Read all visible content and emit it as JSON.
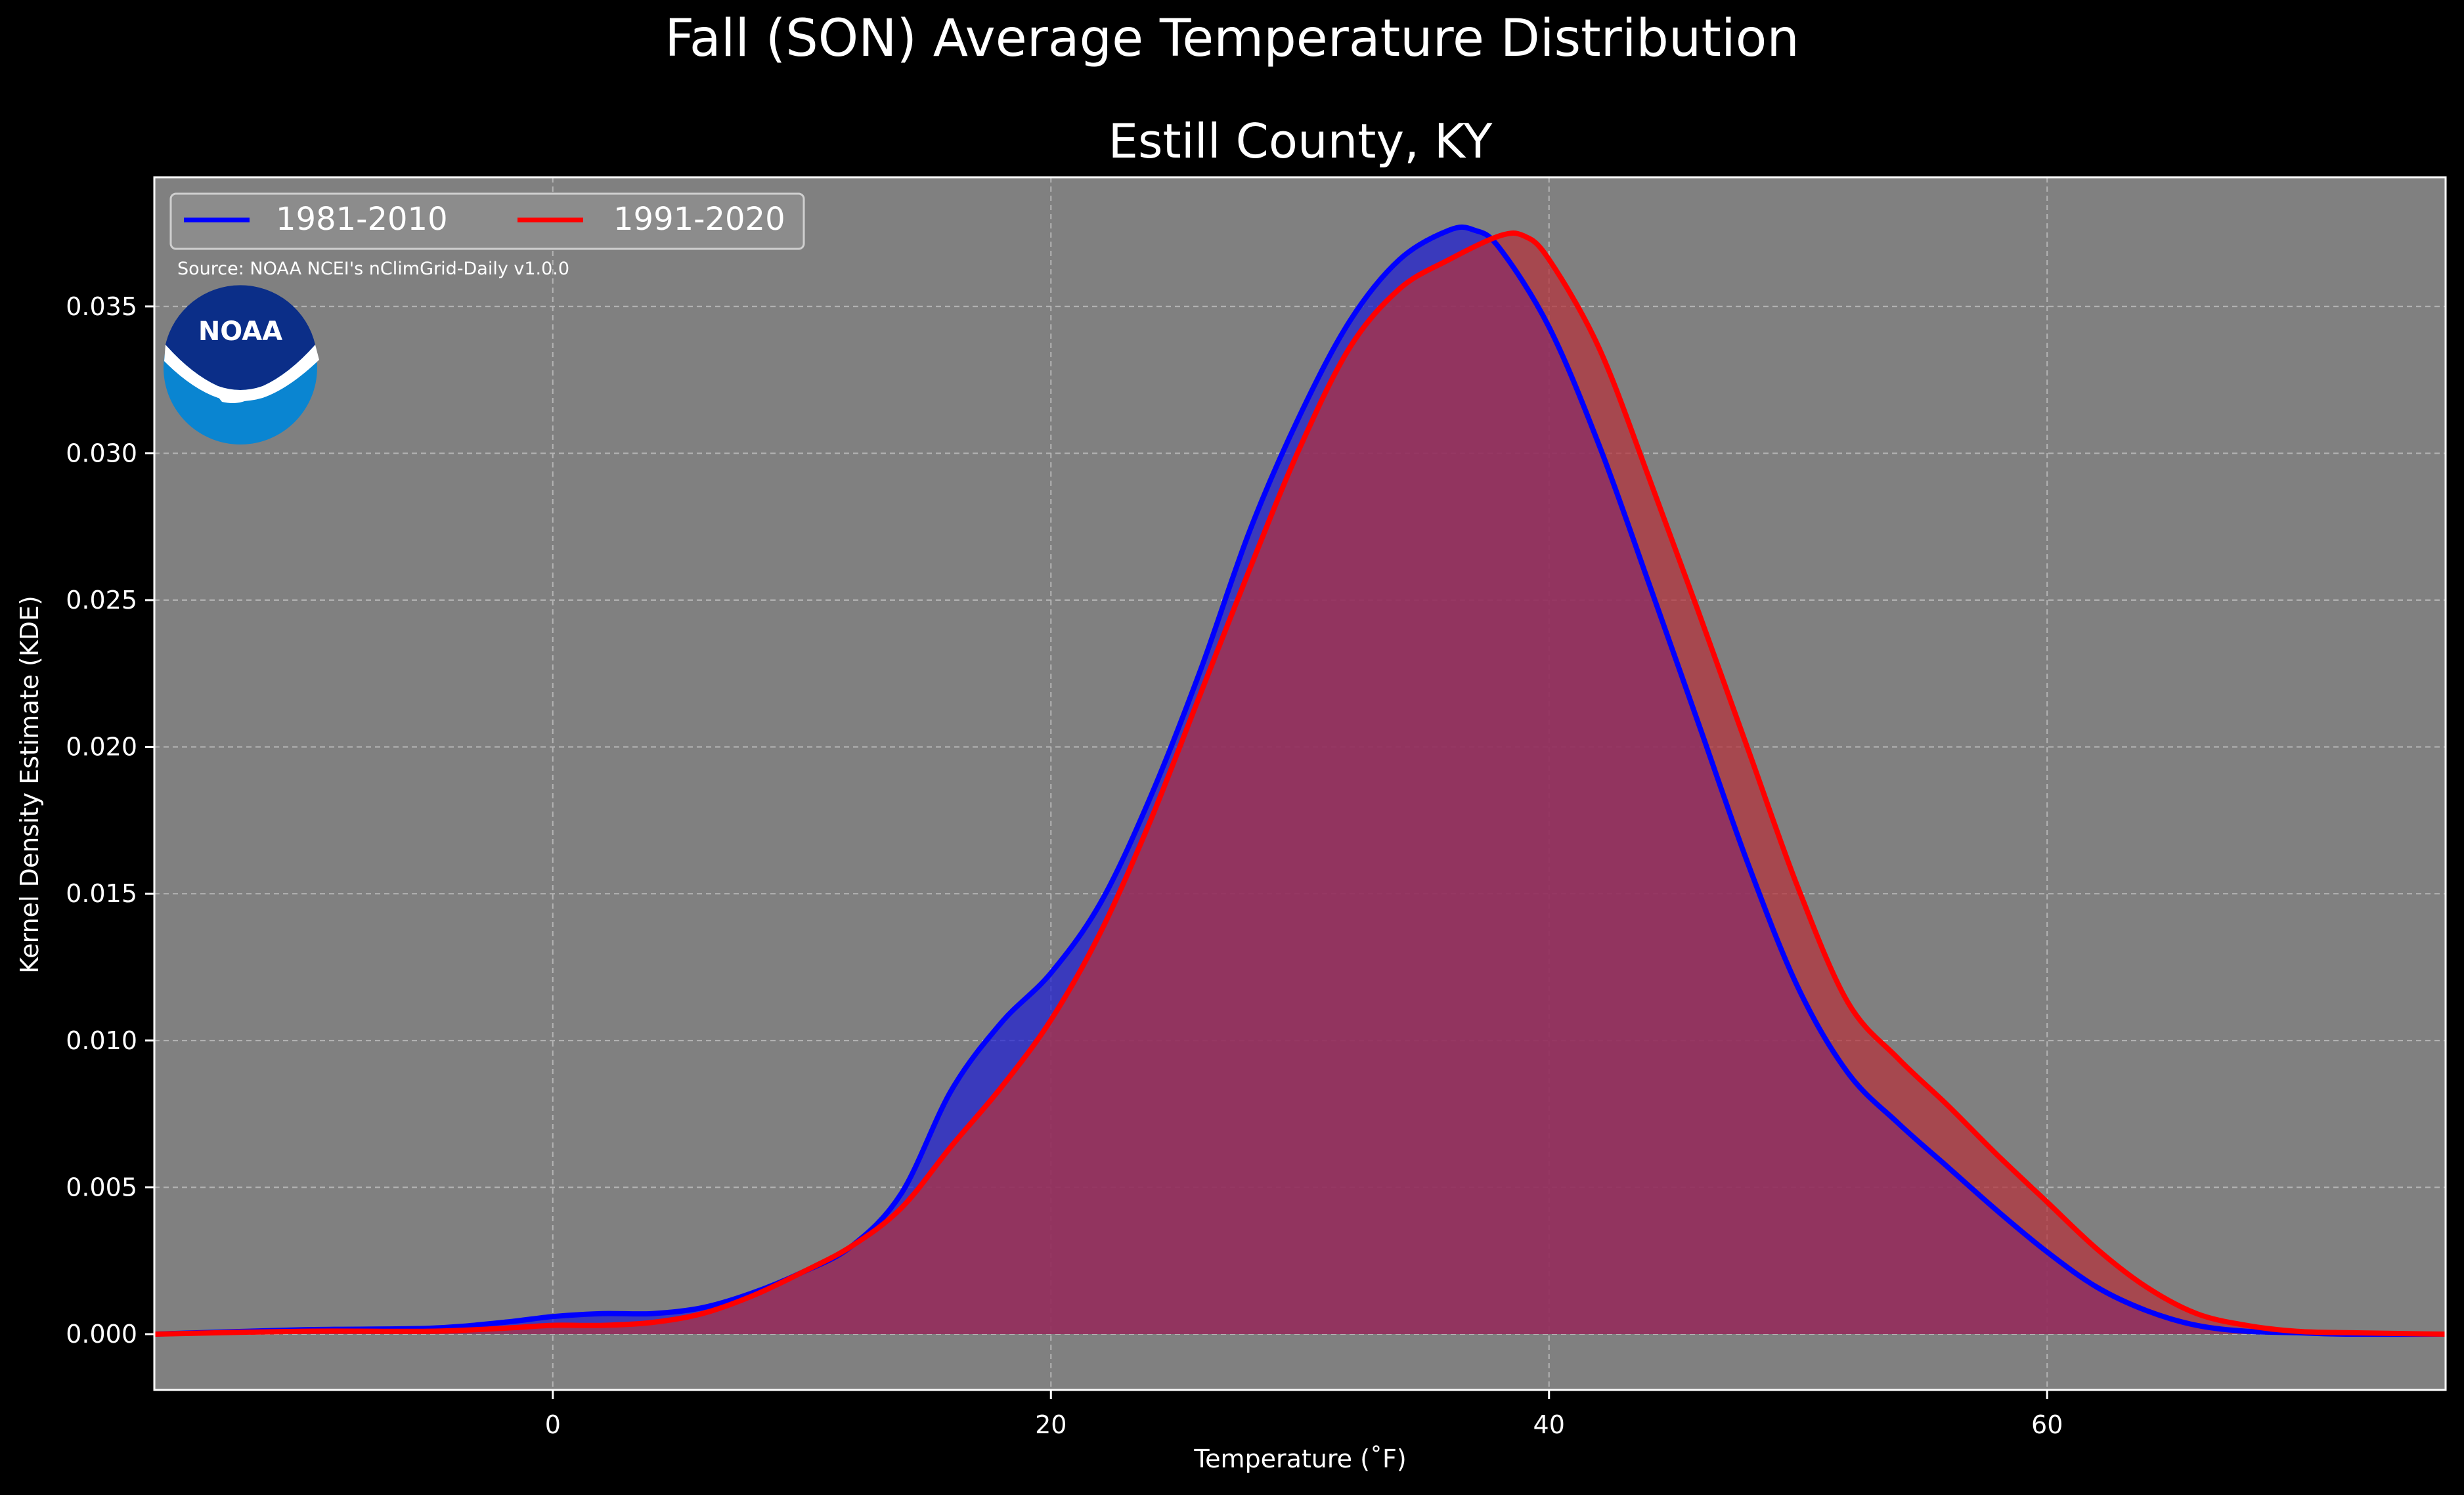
{
  "chart_data": {
    "type": "area",
    "title": "Fall (SON) Average Temperature Distribution",
    "subtitle": "Estill County, KY",
    "xlabel": "Temperature (˚F)",
    "ylabel": "Kernel Density Estimate (KDE)",
    "source": "Source: NOAA NCEI's nClimGrid-Daily v1.0.0",
    "logo_text": "NOAA",
    "xlim": [
      -16,
      76
    ],
    "ylim": [
      -0.0019,
      0.0394
    ],
    "xticks": [
      0,
      20,
      40,
      60
    ],
    "xtick_labels": [
      "0",
      "20",
      "40",
      "60"
    ],
    "yticks": [
      0.0,
      0.005,
      0.01,
      0.015,
      0.02,
      0.025,
      0.03,
      0.035
    ],
    "ytick_labels": [
      "0.000",
      "0.005",
      "0.010",
      "0.015",
      "0.020",
      "0.025",
      "0.030",
      "0.035"
    ],
    "grid": true,
    "legend_position": "top-left",
    "series": [
      {
        "name": "1981-2010",
        "color": "#0000ff",
        "fill": "#1e1ed2",
        "x": [
          -16,
          -10,
          -5,
          -2,
          0,
          2,
          4,
          6,
          8,
          10,
          12,
          14,
          16,
          18,
          20,
          22,
          24,
          26,
          28,
          30,
          32,
          34,
          36,
          37,
          38,
          40,
          42,
          44,
          46,
          48,
          50,
          52,
          54,
          56,
          58,
          60,
          62,
          64,
          66,
          68,
          70,
          72,
          76
        ],
        "y": [
          0.0,
          0.00015,
          0.0002,
          0.0004,
          0.0006,
          0.0007,
          0.0007,
          0.0009,
          0.0014,
          0.0021,
          0.003,
          0.0048,
          0.0083,
          0.0106,
          0.0123,
          0.0147,
          0.0183,
          0.0226,
          0.0274,
          0.0313,
          0.0345,
          0.0366,
          0.0376,
          0.0376,
          0.037,
          0.0343,
          0.0303,
          0.0256,
          0.0208,
          0.016,
          0.0118,
          0.0089,
          0.0072,
          0.0057,
          0.0042,
          0.0028,
          0.0016,
          0.0008,
          0.0003,
          0.0001,
          5e-05,
          0.0,
          0.0
        ]
      },
      {
        "name": "1991-2020",
        "color": "#ff0000",
        "fill": "#b4323c",
        "x": [
          -16,
          -10,
          -5,
          -2,
          0,
          2,
          4,
          6,
          8,
          10,
          12,
          14,
          16,
          18,
          20,
          22,
          24,
          26,
          28,
          30,
          32,
          34,
          36,
          38,
          39,
          40,
          42,
          44,
          46,
          48,
          50,
          52,
          54,
          56,
          58,
          60,
          62,
          64,
          66,
          68,
          70,
          72,
          76
        ],
        "y": [
          0.0,
          0.0001,
          0.0001,
          0.0002,
          0.0003,
          0.0003,
          0.0004,
          0.0007,
          0.0013,
          0.0021,
          0.003,
          0.0043,
          0.0064,
          0.0084,
          0.0107,
          0.0137,
          0.0175,
          0.0218,
          0.0261,
          0.0302,
          0.0336,
          0.0356,
          0.0366,
          0.0374,
          0.0374,
          0.0366,
          0.0336,
          0.0292,
          0.0246,
          0.0199,
          0.0152,
          0.0113,
          0.0094,
          0.0078,
          0.0061,
          0.0045,
          0.0029,
          0.0016,
          0.0007,
          0.0003,
          0.0001,
          5e-05,
          0.0
        ]
      }
    ]
  }
}
